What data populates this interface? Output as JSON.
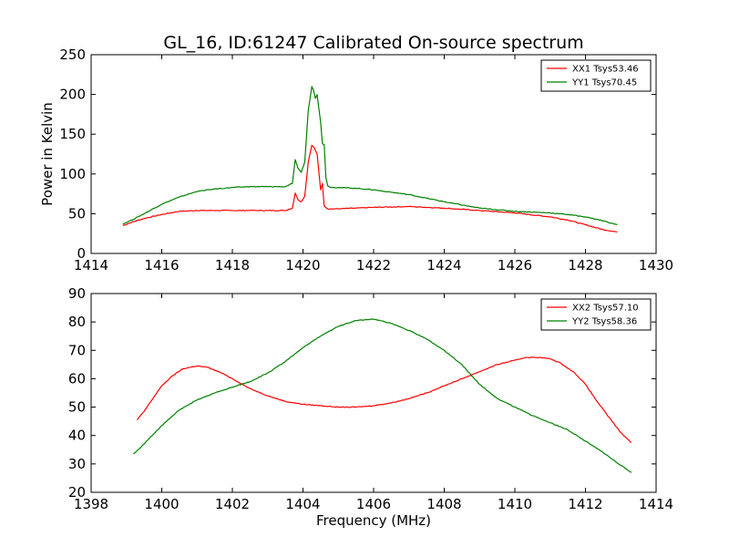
{
  "figure": {
    "title": "GL_16, ID:61247 Calibrated On-source spectrum"
  },
  "chart_data": [
    {
      "type": "line",
      "ylabel": "Power in Kelvin",
      "xlabel": "",
      "xlim": [
        1414,
        1430
      ],
      "ylim": [
        0,
        250
      ],
      "xticks": [
        1414,
        1416,
        1418,
        1420,
        1422,
        1424,
        1426,
        1428,
        1430
      ],
      "yticks": [
        0,
        50,
        100,
        150,
        200,
        250
      ],
      "grid": false,
      "legend_position": "top-right",
      "series": [
        {
          "name": "XX1 Tsys53.46",
          "color": "#ff0000",
          "x": [
            1414.9,
            1415.2,
            1415.5,
            1416.0,
            1416.5,
            1417.0,
            1417.5,
            1418.0,
            1418.5,
            1419.0,
            1419.5,
            1419.7,
            1419.78,
            1419.85,
            1419.95,
            1420.05,
            1420.15,
            1420.25,
            1420.3,
            1420.4,
            1420.5,
            1420.55,
            1420.6,
            1420.7,
            1420.9,
            1421.5,
            1422.0,
            1423.0,
            1424.0,
            1425.0,
            1426.0,
            1427.0,
            1427.5,
            1428.0,
            1428.5,
            1428.9
          ],
          "y": [
            35,
            40,
            44,
            49,
            53,
            54,
            54,
            54,
            54,
            54,
            54,
            57,
            76,
            68,
            65,
            72,
            115,
            136,
            134,
            125,
            80,
            88,
            60,
            56,
            56,
            57,
            58,
            59,
            57,
            54,
            51,
            46,
            42,
            36,
            30,
            27
          ]
        },
        {
          "name": "YY1 Tsys70.45",
          "color": "#008000",
          "x": [
            1414.9,
            1415.2,
            1415.5,
            1416.0,
            1416.5,
            1417.0,
            1417.5,
            1418.0,
            1418.5,
            1419.0,
            1419.5,
            1419.7,
            1419.78,
            1419.85,
            1419.95,
            1420.05,
            1420.15,
            1420.25,
            1420.3,
            1420.35,
            1420.4,
            1420.5,
            1420.55,
            1420.6,
            1420.65,
            1420.7,
            1420.8,
            1421.0,
            1421.5,
            1422.0,
            1423.0,
            1424.0,
            1425.0,
            1426.0,
            1427.0,
            1427.5,
            1428.0,
            1428.5,
            1428.9
          ],
          "y": [
            37,
            43,
            50,
            62,
            71,
            78,
            81,
            83,
            84,
            84,
            84,
            88,
            118,
            108,
            102,
            115,
            180,
            210,
            205,
            195,
            200,
            165,
            138,
            137,
            95,
            85,
            83,
            83,
            82,
            80,
            74,
            65,
            57,
            53,
            51,
            49,
            46,
            41,
            36
          ]
        }
      ]
    },
    {
      "type": "line",
      "xlabel": "Frequency (MHz)",
      "ylabel": "",
      "xlim": [
        1398,
        1414
      ],
      "ylim": [
        20,
        90
      ],
      "xticks": [
        1398,
        1400,
        1402,
        1404,
        1406,
        1408,
        1410,
        1412,
        1414
      ],
      "yticks": [
        20,
        30,
        40,
        50,
        60,
        70,
        80,
        90
      ],
      "grid": false,
      "legend_position": "top-right",
      "series": [
        {
          "name": "XX2 Tsys57.10",
          "color": "#ff0000",
          "x": [
            1399.3,
            1399.5,
            1399.8,
            1400.0,
            1400.3,
            1400.6,
            1401.0,
            1401.3,
            1401.7,
            1402.0,
            1402.5,
            1403.0,
            1403.5,
            1404.0,
            1404.5,
            1405.0,
            1405.5,
            1406.0,
            1406.5,
            1407.0,
            1407.5,
            1408.0,
            1408.5,
            1409.0,
            1409.5,
            1410.0,
            1410.3,
            1410.7,
            1411.0,
            1411.3,
            1411.7,
            1412.0,
            1412.3,
            1412.6,
            1413.0,
            1413.3
          ],
          "y": [
            45.5,
            48.5,
            54,
            57.5,
            61,
            63.5,
            64.5,
            64,
            62,
            60,
            56.5,
            54,
            52,
            51,
            50.5,
            50,
            50,
            50.5,
            51.5,
            53,
            55,
            57.5,
            60,
            62.5,
            65,
            66.5,
            67.5,
            67.5,
            67,
            65.5,
            62,
            58,
            52.5,
            47.5,
            41,
            37.5
          ]
        },
        {
          "name": "YY2 Tsys58.36",
          "color": "#008000",
          "x": [
            1399.2,
            1399.5,
            1400.0,
            1400.5,
            1401.0,
            1401.5,
            1402.0,
            1402.5,
            1403.0,
            1403.5,
            1404.0,
            1404.5,
            1405.0,
            1405.5,
            1406.0,
            1406.5,
            1407.0,
            1407.5,
            1408.0,
            1408.5,
            1409.0,
            1409.5,
            1410.0,
            1410.5,
            1411.0,
            1411.5,
            1412.0,
            1412.5,
            1413.0,
            1413.3
          ],
          "y": [
            33.5,
            37,
            43.5,
            49,
            52.5,
            55,
            57,
            59,
            62,
            66,
            71,
            75,
            78.5,
            80.5,
            81,
            79.5,
            77,
            74,
            70,
            65,
            58,
            53,
            50,
            47,
            44.5,
            42,
            38,
            34,
            29.5,
            27
          ]
        }
      ]
    }
  ]
}
